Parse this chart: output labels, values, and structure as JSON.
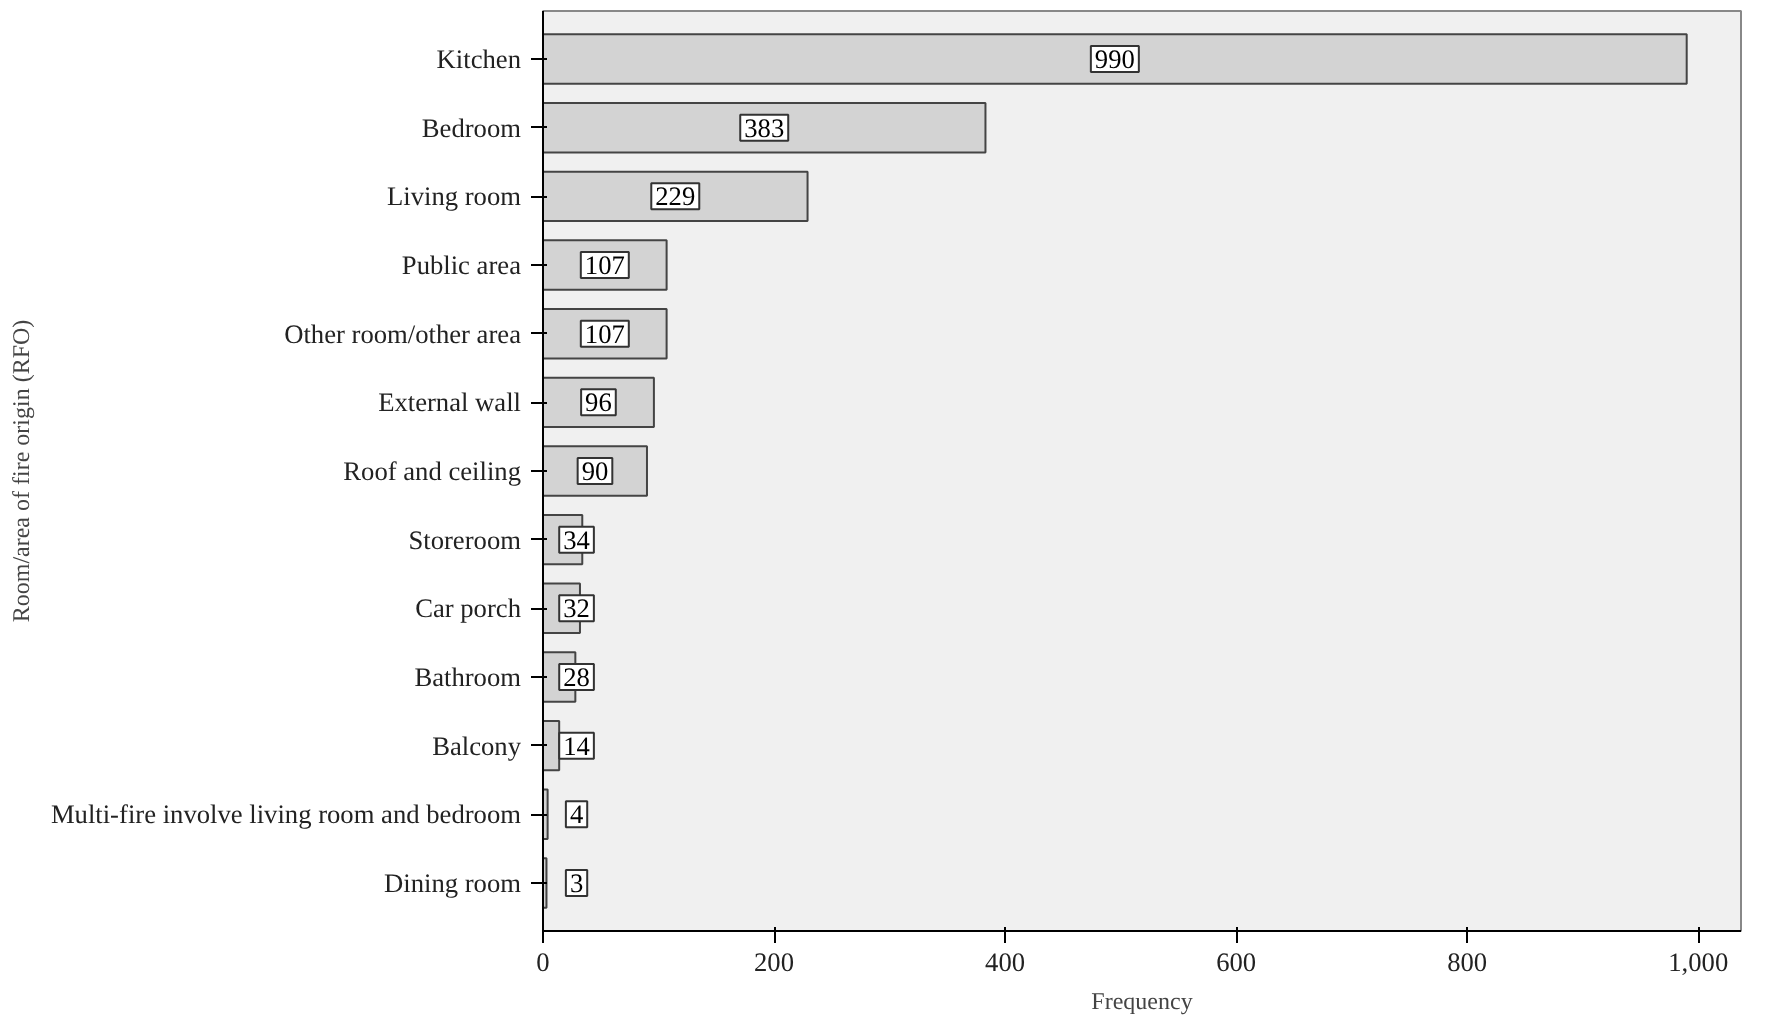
{
  "chart_data": {
    "type": "bar",
    "orientation": "horizontal",
    "xlabel": "Frequency",
    "ylabel": "Room/area of fire origin (RFO)",
    "categories": [
      "Kitchen",
      "Bedroom",
      "Living room",
      "Public area",
      "Other room/other area",
      "External wall",
      "Roof and ceiling",
      "Storeroom",
      "Car porch",
      "Bathroom",
      "Balcony",
      "Multi-fire involve living room and bedroom",
      "Dining room"
    ],
    "values": [
      990,
      383,
      229,
      107,
      107,
      96,
      90,
      34,
      32,
      28,
      14,
      4,
      3
    ],
    "color": "#d3d3d3",
    "xlim": [
      0,
      1037
    ],
    "xticks": [
      0,
      200,
      400,
      600,
      800,
      {
        "value": 1000,
        "label": "1,000"
      }
    ],
    "data_labels": true,
    "grid": false
  }
}
